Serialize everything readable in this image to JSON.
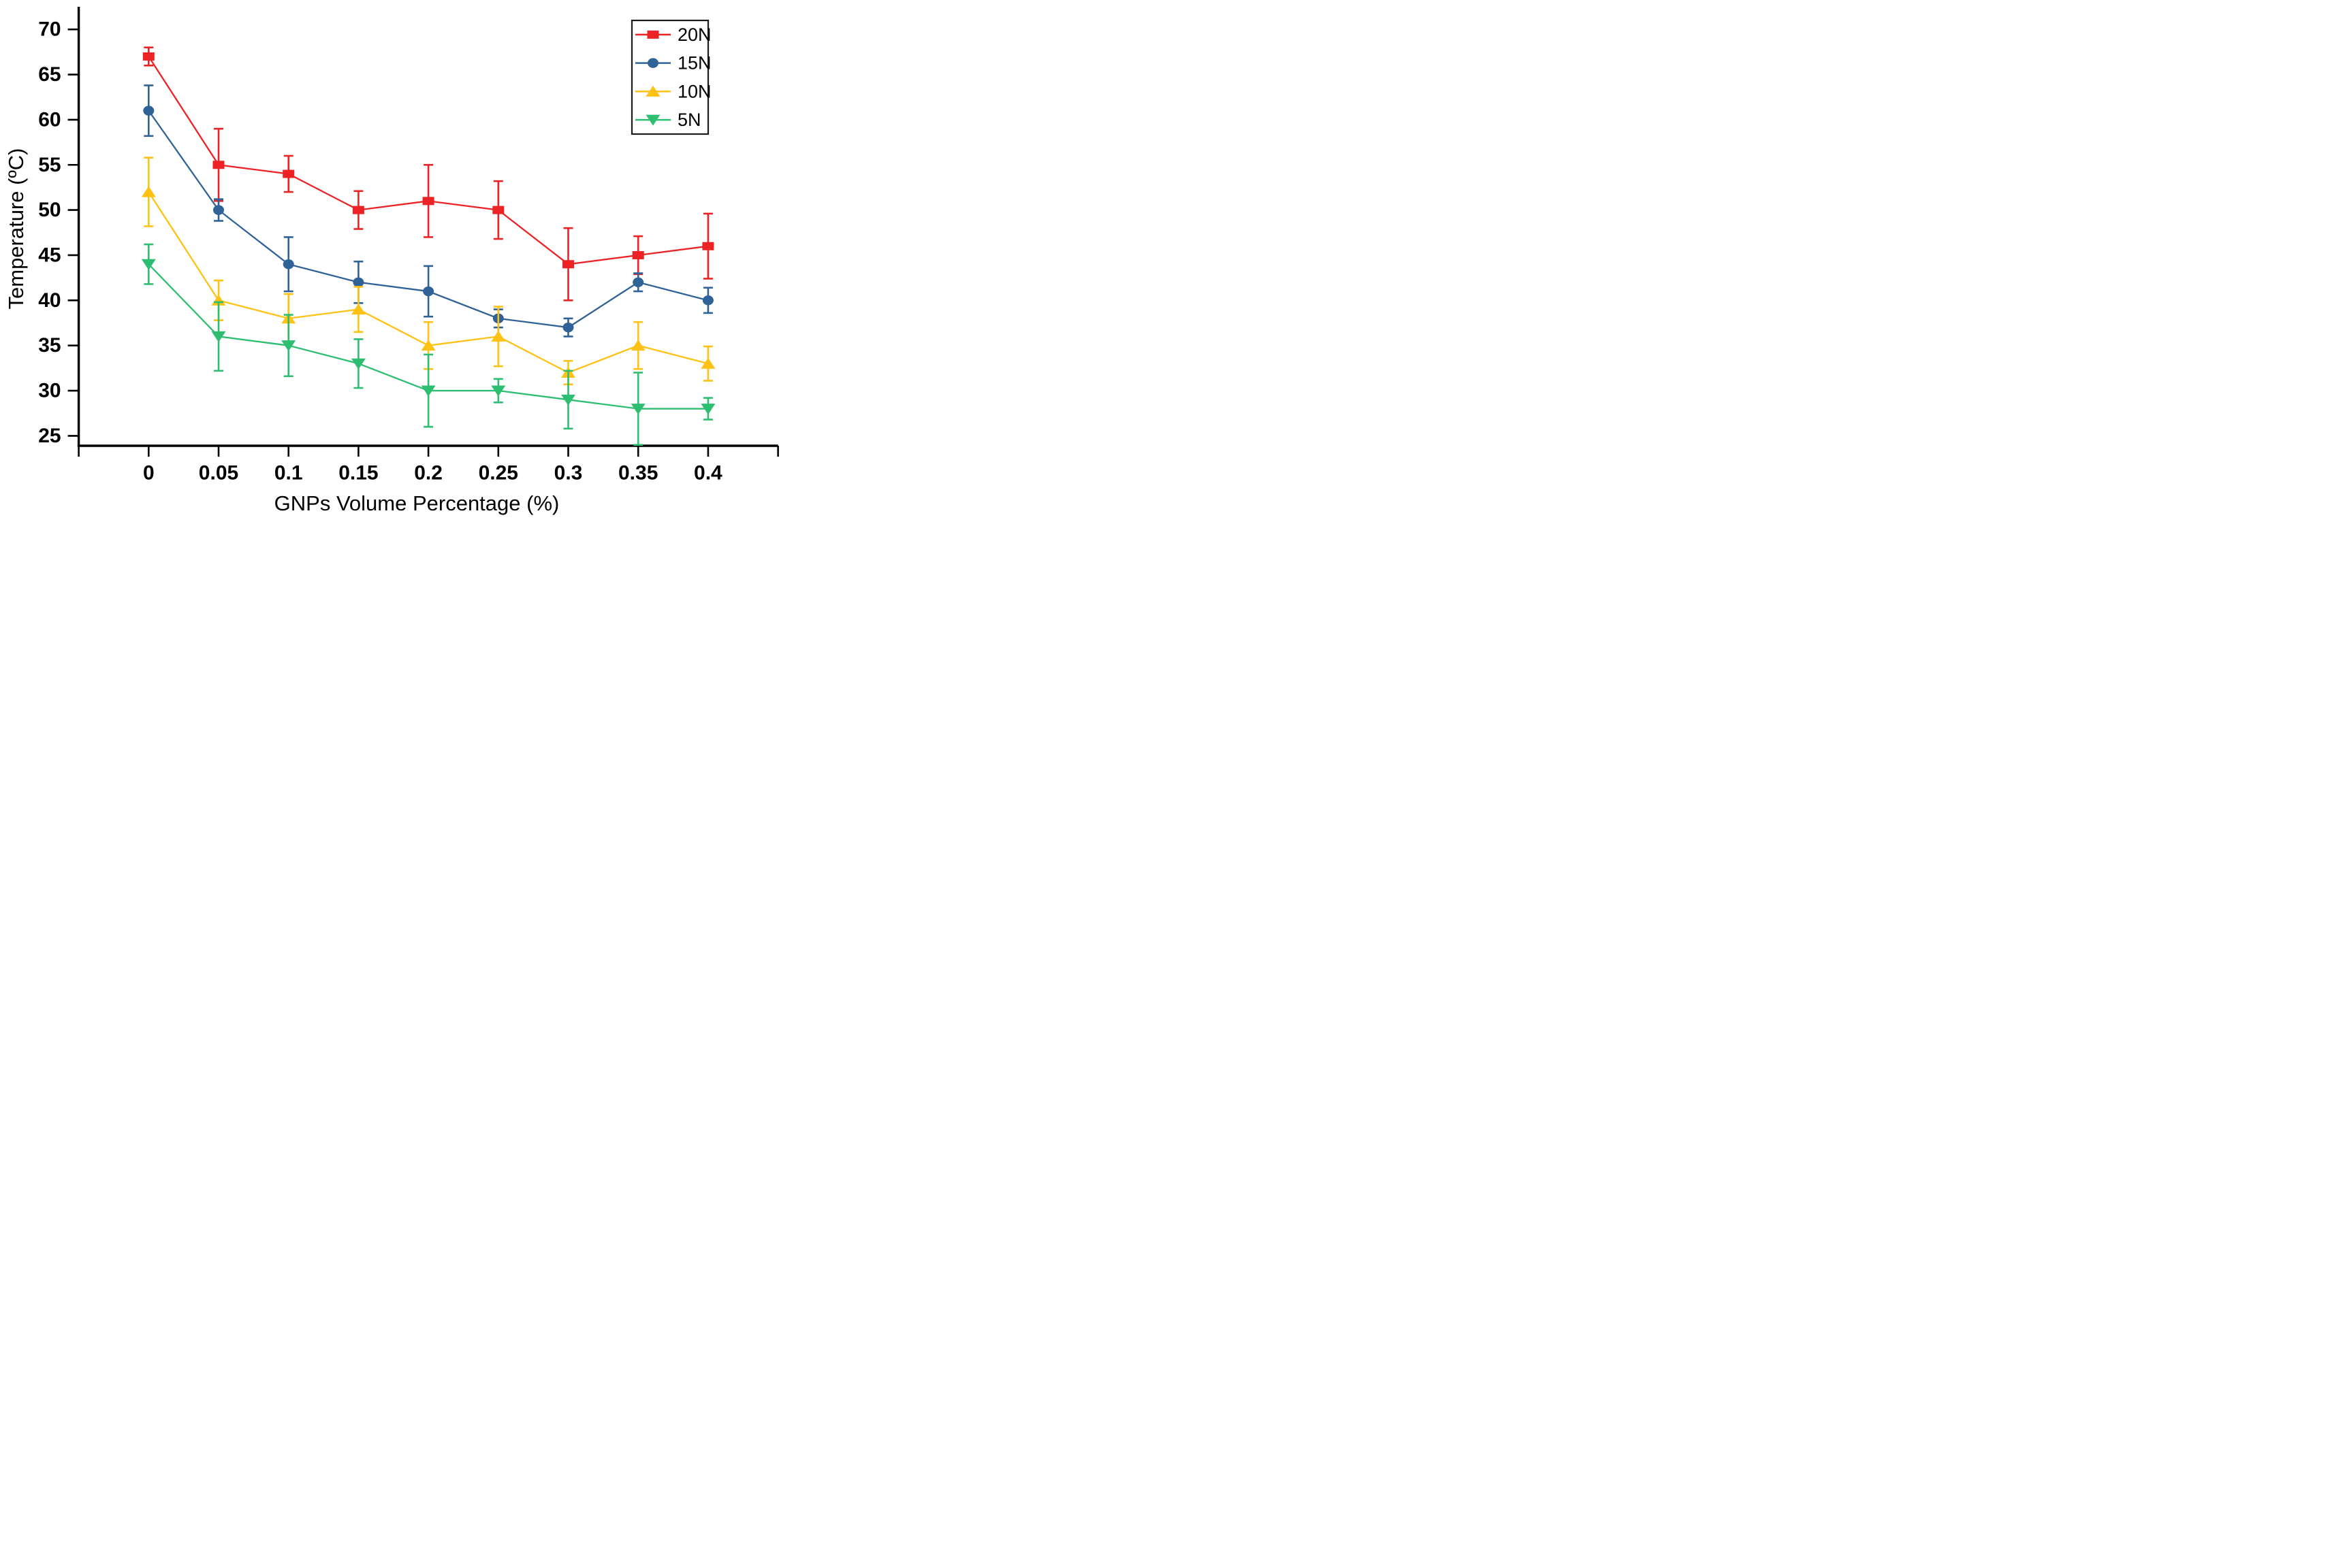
{
  "chart_data": {
    "type": "line",
    "title": "",
    "xlabel": "GNPs Volume Percentage (%)",
    "ylabel": "Temperature (ºC)",
    "grid": false,
    "legend_position": "top-right",
    "xlim": [
      -0.05,
      0.45
    ],
    "ylim": [
      23.9,
      72.5
    ],
    "x": [
      0,
      0.05,
      0.1,
      0.15,
      0.2,
      0.25,
      0.3,
      0.35,
      0.4
    ],
    "x_ticks": [
      -0.05,
      0,
      0.05,
      0.1,
      0.15,
      0.2,
      0.25,
      0.3,
      0.35,
      0.4,
      0.45
    ],
    "x_tick_labels": [
      "",
      "0",
      "0.05",
      "0.1",
      "0.15",
      "0.2",
      "0.25",
      "0.3",
      "0.35",
      "0.4",
      ""
    ],
    "y_ticks": [
      25,
      30,
      35,
      40,
      45,
      50,
      55,
      60,
      65,
      70
    ],
    "y_tick_labels": [
      "25",
      "30",
      "35",
      "40",
      "45",
      "50",
      "55",
      "60",
      "65",
      "70"
    ],
    "series": [
      {
        "name": "20N",
        "color": "#ED2224",
        "marker": "square",
        "values": [
          67,
          55,
          54,
          50,
          51,
          50,
          44,
          45,
          46
        ],
        "errors": [
          1.0,
          4.0,
          2.0,
          2.1,
          4.0,
          3.2,
          4.0,
          2.1,
          3.6
        ]
      },
      {
        "name": "15N",
        "color": "#2F6296",
        "marker": "circle",
        "values": [
          61,
          50,
          44,
          42,
          41,
          38,
          37,
          42,
          40
        ],
        "errors": [
          2.8,
          1.2,
          3.0,
          2.3,
          2.8,
          1.0,
          1.0,
          1.0,
          1.4
        ]
      },
      {
        "name": "10N",
        "color": "#FFC113",
        "marker": "triangle-up",
        "values": [
          52,
          40,
          38,
          39,
          35,
          36,
          32,
          35,
          33
        ],
        "errors": [
          3.8,
          2.2,
          2.7,
          2.5,
          2.6,
          3.3,
          1.3,
          2.6,
          1.9
        ]
      },
      {
        "name": "5N",
        "color": "#2DBE71",
        "marker": "triangle-down",
        "values": [
          44,
          36,
          35,
          33,
          30,
          30,
          29,
          28,
          28
        ],
        "errors": [
          2.2,
          3.8,
          3.4,
          2.7,
          4.0,
          1.3,
          3.2,
          4.0,
          1.2
        ]
      }
    ]
  }
}
